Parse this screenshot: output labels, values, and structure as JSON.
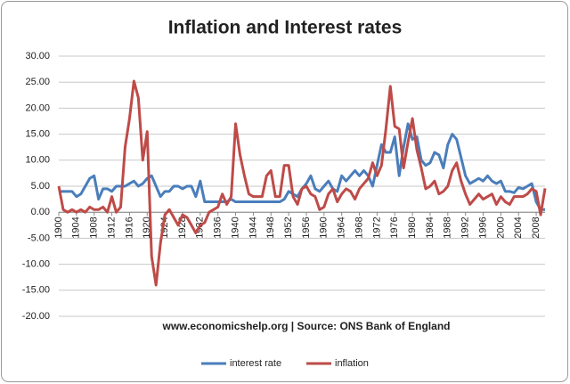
{
  "chart_data": {
    "type": "line",
    "title": "Inflation and Interest rates",
    "annotation": "www.economicshelp.org | Source: ONS Bank of England",
    "x": [
      1900,
      1901,
      1902,
      1903,
      1904,
      1905,
      1906,
      1907,
      1908,
      1909,
      1910,
      1911,
      1912,
      1913,
      1914,
      1915,
      1916,
      1917,
      1918,
      1919,
      1920,
      1921,
      1922,
      1923,
      1924,
      1925,
      1926,
      1927,
      1928,
      1929,
      1930,
      1931,
      1932,
      1933,
      1934,
      1935,
      1936,
      1937,
      1938,
      1939,
      1940,
      1941,
      1942,
      1943,
      1944,
      1945,
      1946,
      1947,
      1948,
      1949,
      1950,
      1951,
      1952,
      1953,
      1954,
      1955,
      1956,
      1957,
      1958,
      1959,
      1960,
      1961,
      1962,
      1963,
      1964,
      1965,
      1966,
      1967,
      1968,
      1969,
      1970,
      1971,
      1972,
      1973,
      1974,
      1975,
      1976,
      1977,
      1978,
      1979,
      1980,
      1981,
      1982,
      1983,
      1984,
      1985,
      1986,
      1987,
      1988,
      1989,
      1990,
      1991,
      1992,
      1993,
      1994,
      1995,
      1996,
      1997,
      1998,
      1999,
      2000,
      2001,
      2002,
      2003,
      2004,
      2005,
      2006,
      2007,
      2008,
      2009,
      2010
    ],
    "series": [
      {
        "name": "interest rate",
        "color": "#4a7ebb",
        "values": [
          4,
          4,
          4,
          4,
          3,
          3.5,
          5,
          6.5,
          7,
          2.5,
          4.5,
          4.5,
          4,
          5,
          5,
          5,
          5.5,
          6,
          5,
          5.5,
          6.5,
          7,
          5,
          3,
          4,
          4,
          5,
          5,
          4.5,
          5,
          5,
          3,
          6,
          2,
          2,
          2,
          2,
          2,
          2,
          2.5,
          2,
          2,
          2,
          2,
          2,
          2,
          2,
          2,
          2,
          2,
          2,
          2.5,
          4,
          3.5,
          3,
          4.5,
          5.5,
          7,
          4.5,
          4,
          5,
          6,
          4.5,
          4,
          7,
          6,
          7,
          8,
          7,
          8,
          7,
          5,
          9,
          13,
          11.5,
          11.5,
          14.5,
          7,
          12.5,
          17,
          14,
          14.5,
          10,
          9,
          9.5,
          11.5,
          11,
          8.5,
          13,
          15,
          14,
          10.5,
          7,
          5.5,
          6,
          6.5,
          6,
          7,
          6,
          5.5,
          6,
          4,
          4,
          3.75,
          4.75,
          4.5,
          5,
          5.5,
          2,
          0.5,
          0.5
        ]
      },
      {
        "name": "inflation",
        "color": "#be4b48",
        "values": [
          5,
          0.5,
          0,
          0.5,
          0,
          0.5,
          0,
          1,
          0.5,
          0.5,
          1,
          0,
          3,
          0,
          1,
          12.5,
          18,
          25.2,
          22,
          10,
          15.5,
          -8.5,
          -14,
          -6,
          -0.5,
          0.5,
          -1,
          -2.5,
          -0.5,
          -1,
          -2.5,
          -4,
          -2.5,
          -2,
          0,
          0.5,
          1,
          3.5,
          1.5,
          3,
          17,
          11,
          7,
          3.5,
          3,
          3,
          3,
          7,
          8,
          3,
          3,
          9,
          9,
          3,
          1.5,
          4.5,
          5,
          3.5,
          3,
          0.5,
          1,
          3.5,
          4.5,
          2,
          3.5,
          4.5,
          4,
          2.5,
          4.5,
          5.5,
          6.5,
          9.5,
          7,
          9,
          16,
          24.2,
          16.5,
          16,
          8.5,
          13.5,
          18,
          12,
          8.5,
          4.5,
          5,
          6,
          3.5,
          4,
          5,
          8,
          9.5,
          6,
          3.5,
          1.5,
          2.5,
          3.5,
          2.5,
          3,
          3.5,
          1.5,
          3,
          2,
          1.5,
          3,
          3,
          3,
          3.5,
          4.5,
          4,
          -0.5,
          4.6
        ]
      }
    ],
    "xlim": [
      1900,
      2010
    ],
    "xticks": [
      1900,
      1904,
      1908,
      1912,
      1916,
      1920,
      1924,
      1928,
      1932,
      1936,
      1940,
      1944,
      1948,
      1952,
      1956,
      1960,
      1964,
      1968,
      1972,
      1976,
      1980,
      1984,
      1988,
      1992,
      1996,
      2000,
      2004,
      2008
    ],
    "ylim": [
      -20,
      30
    ],
    "yticks": [
      {
        "value": 30,
        "label": "30.00"
      },
      {
        "value": 25,
        "label": "25.00"
      },
      {
        "value": 20,
        "label": "20.00"
      },
      {
        "value": 15,
        "label": "15.00"
      },
      {
        "value": 10,
        "label": "10.00"
      },
      {
        "value": 5,
        "label": "5.00"
      },
      {
        "value": 0,
        "label": "0.00"
      },
      {
        "value": -5,
        "label": "-5.00"
      },
      {
        "value": -10,
        "label": "-10.00"
      },
      {
        "value": -15,
        "label": "-15.00"
      },
      {
        "value": -20,
        "label": "-20.00"
      }
    ],
    "grid": true,
    "legend": "bottom"
  }
}
